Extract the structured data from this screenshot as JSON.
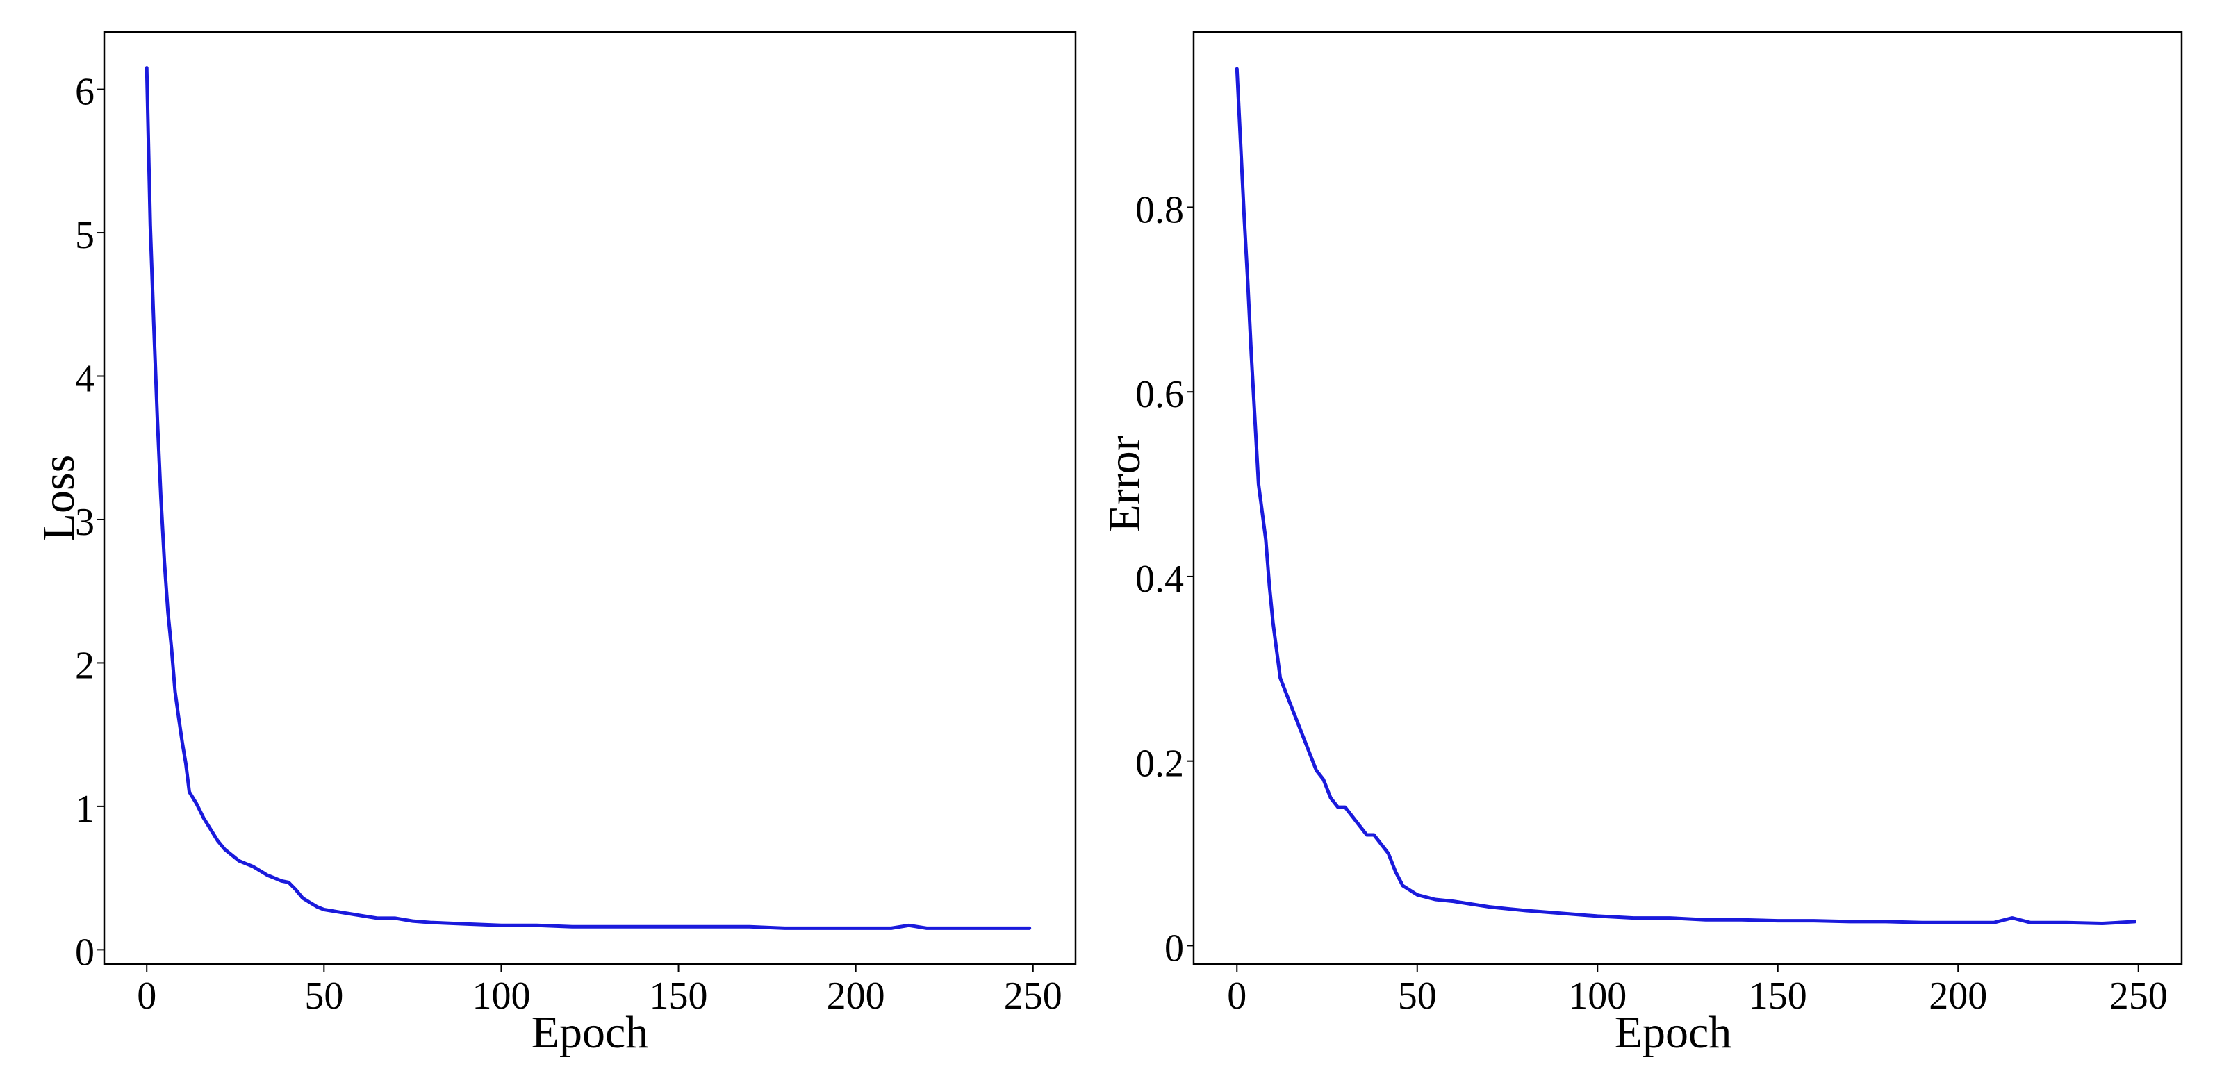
{
  "chart_data": [
    {
      "type": "line",
      "title": "",
      "xlabel": "Epoch",
      "ylabel": "Loss",
      "xlim": [
        -12,
        262
      ],
      "ylim": [
        -0.1,
        6.4
      ],
      "xticks": [
        0,
        50,
        100,
        150,
        200,
        250
      ],
      "yticks": [
        0,
        1,
        2,
        3,
        4,
        5,
        6
      ],
      "ytick_labels": [
        "0",
        "1",
        "2",
        "3",
        "4",
        "5",
        "6"
      ],
      "grid": false,
      "line_color": "#1a1adc",
      "series": [
        {
          "x": [
            0,
            1,
            2,
            3,
            4,
            5,
            6,
            7,
            8,
            9,
            10,
            11,
            12,
            14,
            16,
            18,
            20,
            22,
            24,
            26,
            28,
            30,
            32,
            34,
            36,
            38,
            40,
            42,
            44,
            46,
            48,
            50,
            55,
            60,
            65,
            70,
            75,
            80,
            90,
            100,
            110,
            120,
            130,
            140,
            150,
            160,
            170,
            180,
            190,
            200,
            210,
            215,
            220,
            230,
            240,
            249
          ],
          "y": [
            6.15,
            5.05,
            4.35,
            3.7,
            3.15,
            2.7,
            2.35,
            2.1,
            1.8,
            1.62,
            1.45,
            1.3,
            1.1,
            1.02,
            0.92,
            0.84,
            0.76,
            0.7,
            0.66,
            0.62,
            0.6,
            0.58,
            0.55,
            0.52,
            0.5,
            0.48,
            0.47,
            0.42,
            0.36,
            0.33,
            0.3,
            0.28,
            0.26,
            0.24,
            0.22,
            0.22,
            0.2,
            0.19,
            0.18,
            0.17,
            0.17,
            0.16,
            0.16,
            0.16,
            0.16,
            0.16,
            0.16,
            0.15,
            0.15,
            0.15,
            0.15,
            0.17,
            0.15,
            0.15,
            0.15,
            0.15
          ]
        }
      ]
    },
    {
      "type": "line",
      "title": "",
      "xlabel": "Epoch",
      "ylabel": "Error",
      "xlim": [
        -12,
        262
      ],
      "ylim": [
        -0.02,
        0.99
      ],
      "xticks": [
        0,
        50,
        100,
        150,
        200,
        250
      ],
      "yticks": [
        0.0,
        0.2,
        0.4,
        0.6,
        0.8
      ],
      "ytick_labels": [
        "0",
        "0.2",
        "0.4",
        "0.6",
        "0.8"
      ],
      "grid": false,
      "line_color": "#1a1adc",
      "series": [
        {
          "x": [
            0,
            1,
            2,
            3,
            4,
            5,
            6,
            7,
            8,
            9,
            10,
            11,
            12,
            14,
            16,
            18,
            20,
            22,
            24,
            26,
            28,
            30,
            32,
            34,
            36,
            38,
            40,
            42,
            44,
            46,
            48,
            50,
            55,
            60,
            65,
            70,
            75,
            80,
            90,
            100,
            110,
            120,
            130,
            140,
            150,
            160,
            170,
            180,
            190,
            200,
            210,
            215,
            220,
            230,
            240,
            249
          ],
          "y": [
            0.95,
            0.87,
            0.79,
            0.72,
            0.64,
            0.57,
            0.5,
            0.47,
            0.44,
            0.39,
            0.35,
            0.32,
            0.29,
            0.27,
            0.25,
            0.23,
            0.21,
            0.19,
            0.18,
            0.16,
            0.15,
            0.15,
            0.14,
            0.13,
            0.12,
            0.12,
            0.11,
            0.1,
            0.08,
            0.065,
            0.06,
            0.055,
            0.05,
            0.048,
            0.045,
            0.042,
            0.04,
            0.038,
            0.035,
            0.032,
            0.03,
            0.03,
            0.028,
            0.028,
            0.027,
            0.027,
            0.026,
            0.026,
            0.025,
            0.025,
            0.025,
            0.03,
            0.025,
            0.025,
            0.024,
            0.026
          ]
        }
      ]
    }
  ]
}
